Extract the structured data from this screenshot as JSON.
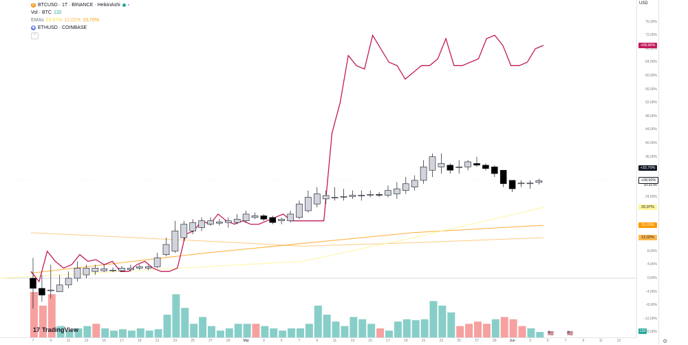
{
  "legend": {
    "main_symbol": "BTCUSD · 1T · BINANCE · HeikinAshi",
    "vol_label": "Vol · BTC",
    "vol_value": "132",
    "emas_label": "EMAs",
    "ema_values": [
      "20,97%",
      "12,02%",
      "15,70%"
    ],
    "compare_symbol": "ETHUSD · COINBASE",
    "collapse_icon": "chevron-up-icon"
  },
  "axis": {
    "currency": "USD",
    "ticks": [
      {
        "v": 76,
        "t": "76,00%"
      },
      {
        "v": 72,
        "t": "72,00%"
      },
      {
        "v": 68,
        "t": "68,00%"
      },
      {
        "v": 64,
        "t": "64,00%"
      },
      {
        "v": 60,
        "t": "60,00%"
      },
      {
        "v": 56,
        "t": "56,00%"
      },
      {
        "v": 52,
        "t": "52,00%"
      },
      {
        "v": 48,
        "t": "48,00%"
      },
      {
        "v": 44,
        "t": "44,00%"
      },
      {
        "v": 40,
        "t": "40,00%"
      },
      {
        "v": 36,
        "t": "36,00%"
      },
      {
        "v": 24,
        "t": "24,00%"
      },
      {
        "v": 8,
        "t": "8,00%"
      },
      {
        "v": 4,
        "t": "4,00%"
      },
      {
        "v": 0,
        "t": "0,00%"
      },
      {
        "v": -4,
        "t": "−4,00%"
      },
      {
        "v": -8,
        "t": "−8,00%"
      },
      {
        "v": -12,
        "t": "−12,00%"
      },
      {
        "v": -16,
        "t": "−16,00%"
      }
    ],
    "labels": [
      {
        "v": 68.96,
        "text": "+68,96%",
        "color": "#c2185b",
        "fg": "#ffffff"
      },
      {
        "v": 32.7,
        "text": "+32,70%",
        "color": "#131722",
        "fg": "#ffffff"
      },
      {
        "v": 28.9,
        "text": "+28,90%",
        "color": "#ffffff",
        "fg": "#131722"
      },
      {
        "v": 20.97,
        "text": "20,97%",
        "color": "#fff59d",
        "fg": "#131722"
      },
      {
        "v": 15.7,
        "text": "15,70%",
        "color": "#ff9800",
        "fg": "#ffffff"
      },
      {
        "v": 12.02,
        "text": "12,02%",
        "color": "#ffb74d",
        "fg": "#131722"
      }
    ],
    "countdown": "10:31:06",
    "volume_label": "132"
  },
  "xaxis": {
    "ticks": [
      "7",
      "9",
      "11",
      "13",
      "15",
      "17",
      "19",
      "21",
      "23",
      "25",
      "27",
      "29",
      "Mai",
      "3",
      "5",
      "7",
      "9",
      "11",
      "13",
      "15",
      "17",
      "19",
      "21",
      "23",
      "25",
      "27",
      "29",
      "Jun",
      "3",
      "5",
      "7",
      "9",
      "11",
      "13"
    ]
  },
  "brand": {
    "name": "TradingView",
    "mark": "17"
  },
  "colors": {
    "ethusd_line": "#c2185b",
    "candle_up": "#d1d4dc",
    "candle_down": "#000000",
    "vol_up": "#26a69a",
    "vol_down": "#ef5350",
    "ema_fast": "#fff59d",
    "ema_mid": "#ff9800",
    "ema_slow": "#ffcc80"
  },
  "chart_data": {
    "type": "line",
    "note_units": "percent change",
    "ylim": [
      -16,
      78
    ],
    "eth_line": [
      2,
      -1,
      8,
      5,
      3,
      4,
      7,
      5,
      5.5,
      4,
      5,
      2,
      2,
      4,
      5,
      3,
      2,
      2,
      3,
      13,
      14,
      17,
      16,
      19,
      17,
      16,
      17,
      16,
      16,
      17,
      18,
      19,
      17,
      17,
      17,
      17,
      17,
      43,
      52,
      66,
      63,
      62,
      72,
      68,
      64,
      63,
      59,
      61,
      63,
      63,
      65,
      71,
      63,
      63,
      64,
      65,
      71,
      72,
      69,
      63,
      63,
      64,
      68,
      69
    ],
    "candles": [
      {
        "o": 0,
        "c": -3,
        "h": 6,
        "l": -9
      },
      {
        "o": -3,
        "c": -5,
        "h": 1,
        "l": -7
      },
      {
        "o": -3.5,
        "c": -3.5,
        "h": 4,
        "l": -6
      },
      {
        "o": -4,
        "c": -2,
        "h": 1,
        "l": -4
      },
      {
        "o": -2,
        "c": 0,
        "h": 2,
        "l": -3
      },
      {
        "o": 0,
        "c": 3,
        "h": 5,
        "l": -1
      },
      {
        "o": 1,
        "c": 3,
        "h": 4,
        "l": 0
      },
      {
        "o": 2,
        "c": 3,
        "h": 4,
        "l": 1
      },
      {
        "o": 2.2,
        "c": 2.8,
        "h": 4,
        "l": 1.8
      },
      {
        "o": 2.2,
        "c": 2.4,
        "h": 3.2,
        "l": 1.8
      },
      {
        "o": 2.2,
        "c": 3,
        "h": 3.6,
        "l": 1.8
      },
      {
        "o": 2.5,
        "c": 3,
        "h": 4,
        "l": 2
      },
      {
        "o": 3,
        "c": 3.4,
        "h": 4,
        "l": 2.5
      },
      {
        "o": 3,
        "c": 3.4,
        "h": 3.8,
        "l": 2.4
      },
      {
        "o": 3.4,
        "c": 6,
        "h": 7.5,
        "l": 3
      },
      {
        "o": 7,
        "c": 10,
        "h": 12,
        "l": 6.5
      },
      {
        "o": 8,
        "c": 14,
        "h": 17,
        "l": 7.5
      },
      {
        "o": 12,
        "c": 16,
        "h": 17,
        "l": 11
      },
      {
        "o": 14,
        "c": 16.5,
        "h": 17.5,
        "l": 13
      },
      {
        "o": 15,
        "c": 17,
        "h": 18,
        "l": 14
      },
      {
        "o": 16,
        "c": 17,
        "h": 18,
        "l": 15.5
      },
      {
        "o": 16.3,
        "c": 16.7,
        "h": 17.6,
        "l": 15.6
      },
      {
        "o": 16.5,
        "c": 17,
        "h": 18,
        "l": 15
      },
      {
        "o": 16.5,
        "c": 17.5,
        "h": 19,
        "l": 16
      },
      {
        "o": 17,
        "c": 19,
        "h": 20,
        "l": 16.5
      },
      {
        "o": 18,
        "c": 18.5,
        "h": 19.5,
        "l": 17.5
      },
      {
        "o": 18.5,
        "c": 17.5,
        "h": 19,
        "l": 17
      },
      {
        "o": 18,
        "c": 16.5,
        "h": 18.5,
        "l": 16
      },
      {
        "o": 17,
        "c": 17.5,
        "h": 18,
        "l": 16
      },
      {
        "o": 17,
        "c": 19,
        "h": 20,
        "l": 16.5
      },
      {
        "o": 18,
        "c": 22,
        "h": 23,
        "l": 17.5
      },
      {
        "o": 20,
        "c": 24,
        "h": 26,
        "l": 19.5
      },
      {
        "o": 22,
        "c": 25,
        "h": 27,
        "l": 21
      },
      {
        "o": 23.5,
        "c": 24.5,
        "h": 26,
        "l": 22
      },
      {
        "o": 24,
        "c": 24,
        "h": 27,
        "l": 23
      },
      {
        "o": 24,
        "c": 24.2,
        "h": 26.5,
        "l": 23
      },
      {
        "o": 24.2,
        "c": 24.6,
        "h": 26,
        "l": 23.5
      },
      {
        "o": 24.4,
        "c": 24.6,
        "h": 26,
        "l": 23
      },
      {
        "o": 24.6,
        "c": 24.8,
        "h": 26,
        "l": 24
      },
      {
        "o": 24.8,
        "c": 24.6,
        "h": 25.5,
        "l": 24
      },
      {
        "o": 24.6,
        "c": 26,
        "h": 27.5,
        "l": 24
      },
      {
        "o": 25,
        "c": 26.5,
        "h": 28.5,
        "l": 23.5
      },
      {
        "o": 26,
        "c": 28,
        "h": 30,
        "l": 25
      },
      {
        "o": 27,
        "c": 29,
        "h": 30.5,
        "l": 26
      },
      {
        "o": 29,
        "c": 33,
        "h": 35,
        "l": 28
      },
      {
        "o": 32,
        "c": 36,
        "h": 37,
        "l": 30
      },
      {
        "o": 33,
        "c": 34,
        "h": 37,
        "l": 31
      },
      {
        "o": 33.5,
        "c": 32,
        "h": 34,
        "l": 31
      },
      {
        "o": 33,
        "c": 33,
        "h": 35,
        "l": 31
      },
      {
        "o": 33,
        "c": 34.5,
        "h": 35,
        "l": 32
      },
      {
        "o": 34,
        "c": 33.5,
        "h": 36,
        "l": 33
      },
      {
        "o": 33.5,
        "c": 32.5,
        "h": 34,
        "l": 32
      },
      {
        "o": 33,
        "c": 31,
        "h": 33.5,
        "l": 30
      },
      {
        "o": 32,
        "c": 28,
        "h": 32,
        "l": 27
      },
      {
        "o": 29,
        "c": 26.5,
        "h": 29,
        "l": 25.5
      },
      {
        "o": 28,
        "c": 28.2,
        "h": 29,
        "l": 27
      },
      {
        "o": 28,
        "c": 28.2,
        "h": 29,
        "l": 26.5
      },
      {
        "o": 28.4,
        "c": 28.9,
        "h": 29.5,
        "l": 27.8
      }
    ],
    "ema_fast": [
      [
        0,
        0
      ],
      [
        440,
        5
      ],
      [
        600,
        12
      ],
      [
        790,
        20.97
      ]
    ],
    "ema_mid": [
      [
        45,
        1.5
      ],
      [
        300,
        7.5
      ],
      [
        600,
        13.5
      ],
      [
        790,
        15.7
      ]
    ],
    "ema_slow": [
      [
        45,
        13.5
      ],
      [
        300,
        11
      ],
      [
        440,
        9.5
      ],
      [
        600,
        10.5
      ],
      [
        790,
        12.02
      ]
    ],
    "volume": [
      {
        "v": 100,
        "up": false
      },
      {
        "v": 70,
        "up": false
      },
      {
        "v": 95,
        "up": false
      },
      {
        "v": 25,
        "up": true
      },
      {
        "v": 15,
        "up": true
      },
      {
        "v": 20,
        "up": true
      },
      {
        "v": 25,
        "up": true
      },
      {
        "v": 30,
        "up": false
      },
      {
        "v": 20,
        "up": true
      },
      {
        "v": 15,
        "up": true
      },
      {
        "v": 18,
        "up": true
      },
      {
        "v": 15,
        "up": true
      },
      {
        "v": 20,
        "up": true
      },
      {
        "v": 15,
        "up": true
      },
      {
        "v": 18,
        "up": true
      },
      {
        "v": 50,
        "up": true
      },
      {
        "v": 95,
        "up": true
      },
      {
        "v": 65,
        "up": true
      },
      {
        "v": 30,
        "up": true
      },
      {
        "v": 45,
        "up": true
      },
      {
        "v": 25,
        "up": true
      },
      {
        "v": 15,
        "up": true
      },
      {
        "v": 20,
        "up": true
      },
      {
        "v": 30,
        "up": true
      },
      {
        "v": 30,
        "up": true
      },
      {
        "v": 30,
        "up": false
      },
      {
        "v": 25,
        "up": true
      },
      {
        "v": 20,
        "up": true
      },
      {
        "v": 15,
        "up": true
      },
      {
        "v": 20,
        "up": true
      },
      {
        "v": 20,
        "up": true
      },
      {
        "v": 30,
        "up": true
      },
      {
        "v": 70,
        "up": true
      },
      {
        "v": 50,
        "up": true
      },
      {
        "v": 35,
        "up": true
      },
      {
        "v": 25,
        "up": true
      },
      {
        "v": 45,
        "up": true
      },
      {
        "v": 40,
        "up": true
      },
      {
        "v": 30,
        "up": true
      },
      {
        "v": 20,
        "up": false
      },
      {
        "v": 15,
        "up": true
      },
      {
        "v": 35,
        "up": true
      },
      {
        "v": 40,
        "up": true
      },
      {
        "v": 38,
        "up": true
      },
      {
        "v": 40,
        "up": true
      },
      {
        "v": 80,
        "up": true
      },
      {
        "v": 70,
        "up": true
      },
      {
        "v": 55,
        "up": true
      },
      {
        "v": 25,
        "up": false
      },
      {
        "v": 30,
        "up": false
      },
      {
        "v": 35,
        "up": false
      },
      {
        "v": 30,
        "up": false
      },
      {
        "v": 40,
        "up": true
      },
      {
        "v": 45,
        "up": false
      },
      {
        "v": 40,
        "up": false
      },
      {
        "v": 25,
        "up": false
      },
      {
        "v": 20,
        "up": true
      },
      {
        "v": 12,
        "up": true
      }
    ]
  }
}
